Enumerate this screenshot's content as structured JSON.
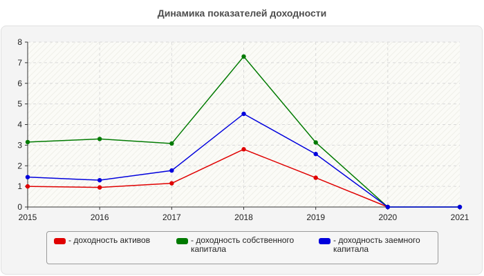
{
  "chart_data": {
    "type": "line",
    "title": "Динамика показателей доходности",
    "categories": [
      "2015",
      "2016",
      "2017",
      "2018",
      "2019",
      "2020",
      "2021"
    ],
    "ylim": [
      0,
      8
    ],
    "yticks": [
      "0",
      "1",
      "2",
      "3",
      "4",
      "5",
      "6",
      "7",
      "8"
    ],
    "grid": true,
    "legend_position": "bottom",
    "series": [
      {
        "name": "- доходность активов",
        "color": "#e00000",
        "values": [
          1.0,
          0.95,
          1.15,
          2.8,
          1.42,
          0,
          null
        ]
      },
      {
        "name": "- доходность собственного капитала",
        "color": "#007a00",
        "values": [
          3.15,
          3.3,
          3.08,
          7.3,
          3.13,
          0,
          0
        ]
      },
      {
        "name": "- доходность заемного капитала",
        "color": "#0000dd",
        "values": [
          1.45,
          1.3,
          1.77,
          4.52,
          2.57,
          0,
          0
        ]
      }
    ]
  }
}
